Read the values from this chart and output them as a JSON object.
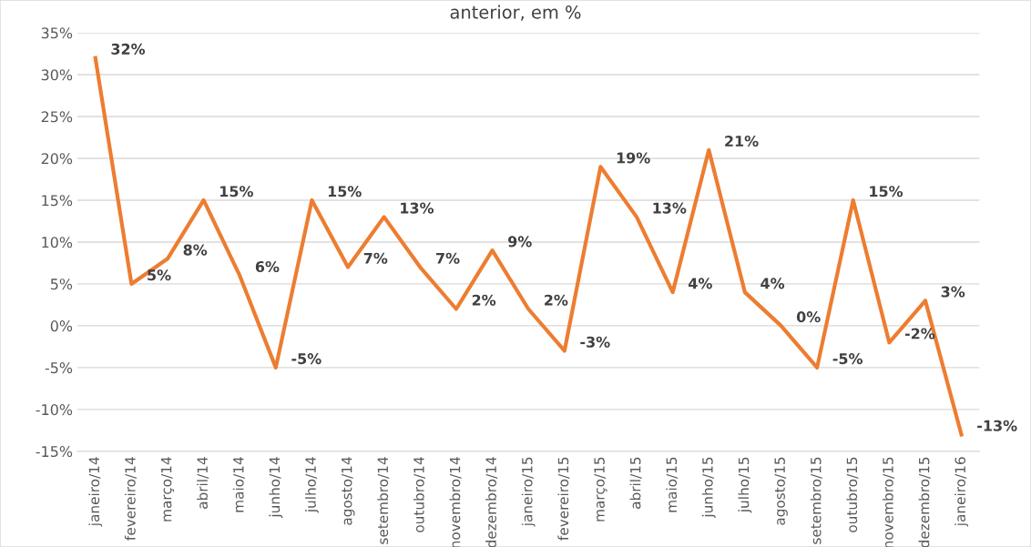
{
  "chart_data": {
    "type": "line",
    "title": "anterior, em %",
    "categories": [
      "janeiro/14",
      "fevereiro/14",
      "março/14",
      "abril/14",
      "maio/14",
      "junho/14",
      "julho/14",
      "agosto/14",
      "setembro/14",
      "outubro/14",
      "novembro/14",
      "dezembro/14",
      "janeiro/15",
      "fevereiro/15",
      "março/15",
      "abril/15",
      "maio/15",
      "junho/15",
      "julho/15",
      "agosto/15",
      "setembro/15",
      "outubro/15",
      "novembro/15",
      "dezembro/15",
      "janeiro/16"
    ],
    "series": [
      {
        "color": "#ed7d31",
        "values": [
          32,
          5,
          8,
          15,
          6,
          -5,
          15,
          7,
          13,
          7,
          2,
          9,
          2,
          -3,
          19,
          13,
          4,
          21,
          4,
          0,
          -5,
          15,
          -2,
          3,
          -13
        ]
      }
    ],
    "value_labels": [
      "32%",
      "5%",
      "8%",
      "15%",
      "6%",
      "-5%",
      "15%",
      "7%",
      "13%",
      "7%",
      "2%",
      "9%",
      "2%",
      "-3%",
      "19%",
      "13%",
      "4%",
      "21%",
      "4%",
      "0%",
      "-5%",
      "15%",
      "-2%",
      "3%",
      "-13%"
    ],
    "ylim": [
      -15,
      35
    ],
    "yticks": [
      {
        "value": -15,
        "label": "-15%"
      },
      {
        "value": -10,
        "label": "-10%"
      },
      {
        "value": -5,
        "label": "-5%"
      },
      {
        "value": 0,
        "label": "0%"
      },
      {
        "value": 5,
        "label": "5%"
      },
      {
        "value": 10,
        "label": "10%"
      },
      {
        "value": 15,
        "label": "15%"
      },
      {
        "value": 20,
        "label": "20%"
      },
      {
        "value": 25,
        "label": "25%"
      },
      {
        "value": 30,
        "label": "30%"
      },
      {
        "value": 35,
        "label": "35%"
      }
    ],
    "grid": "y",
    "marker": "none",
    "line_style": "solid",
    "legend": false
  }
}
